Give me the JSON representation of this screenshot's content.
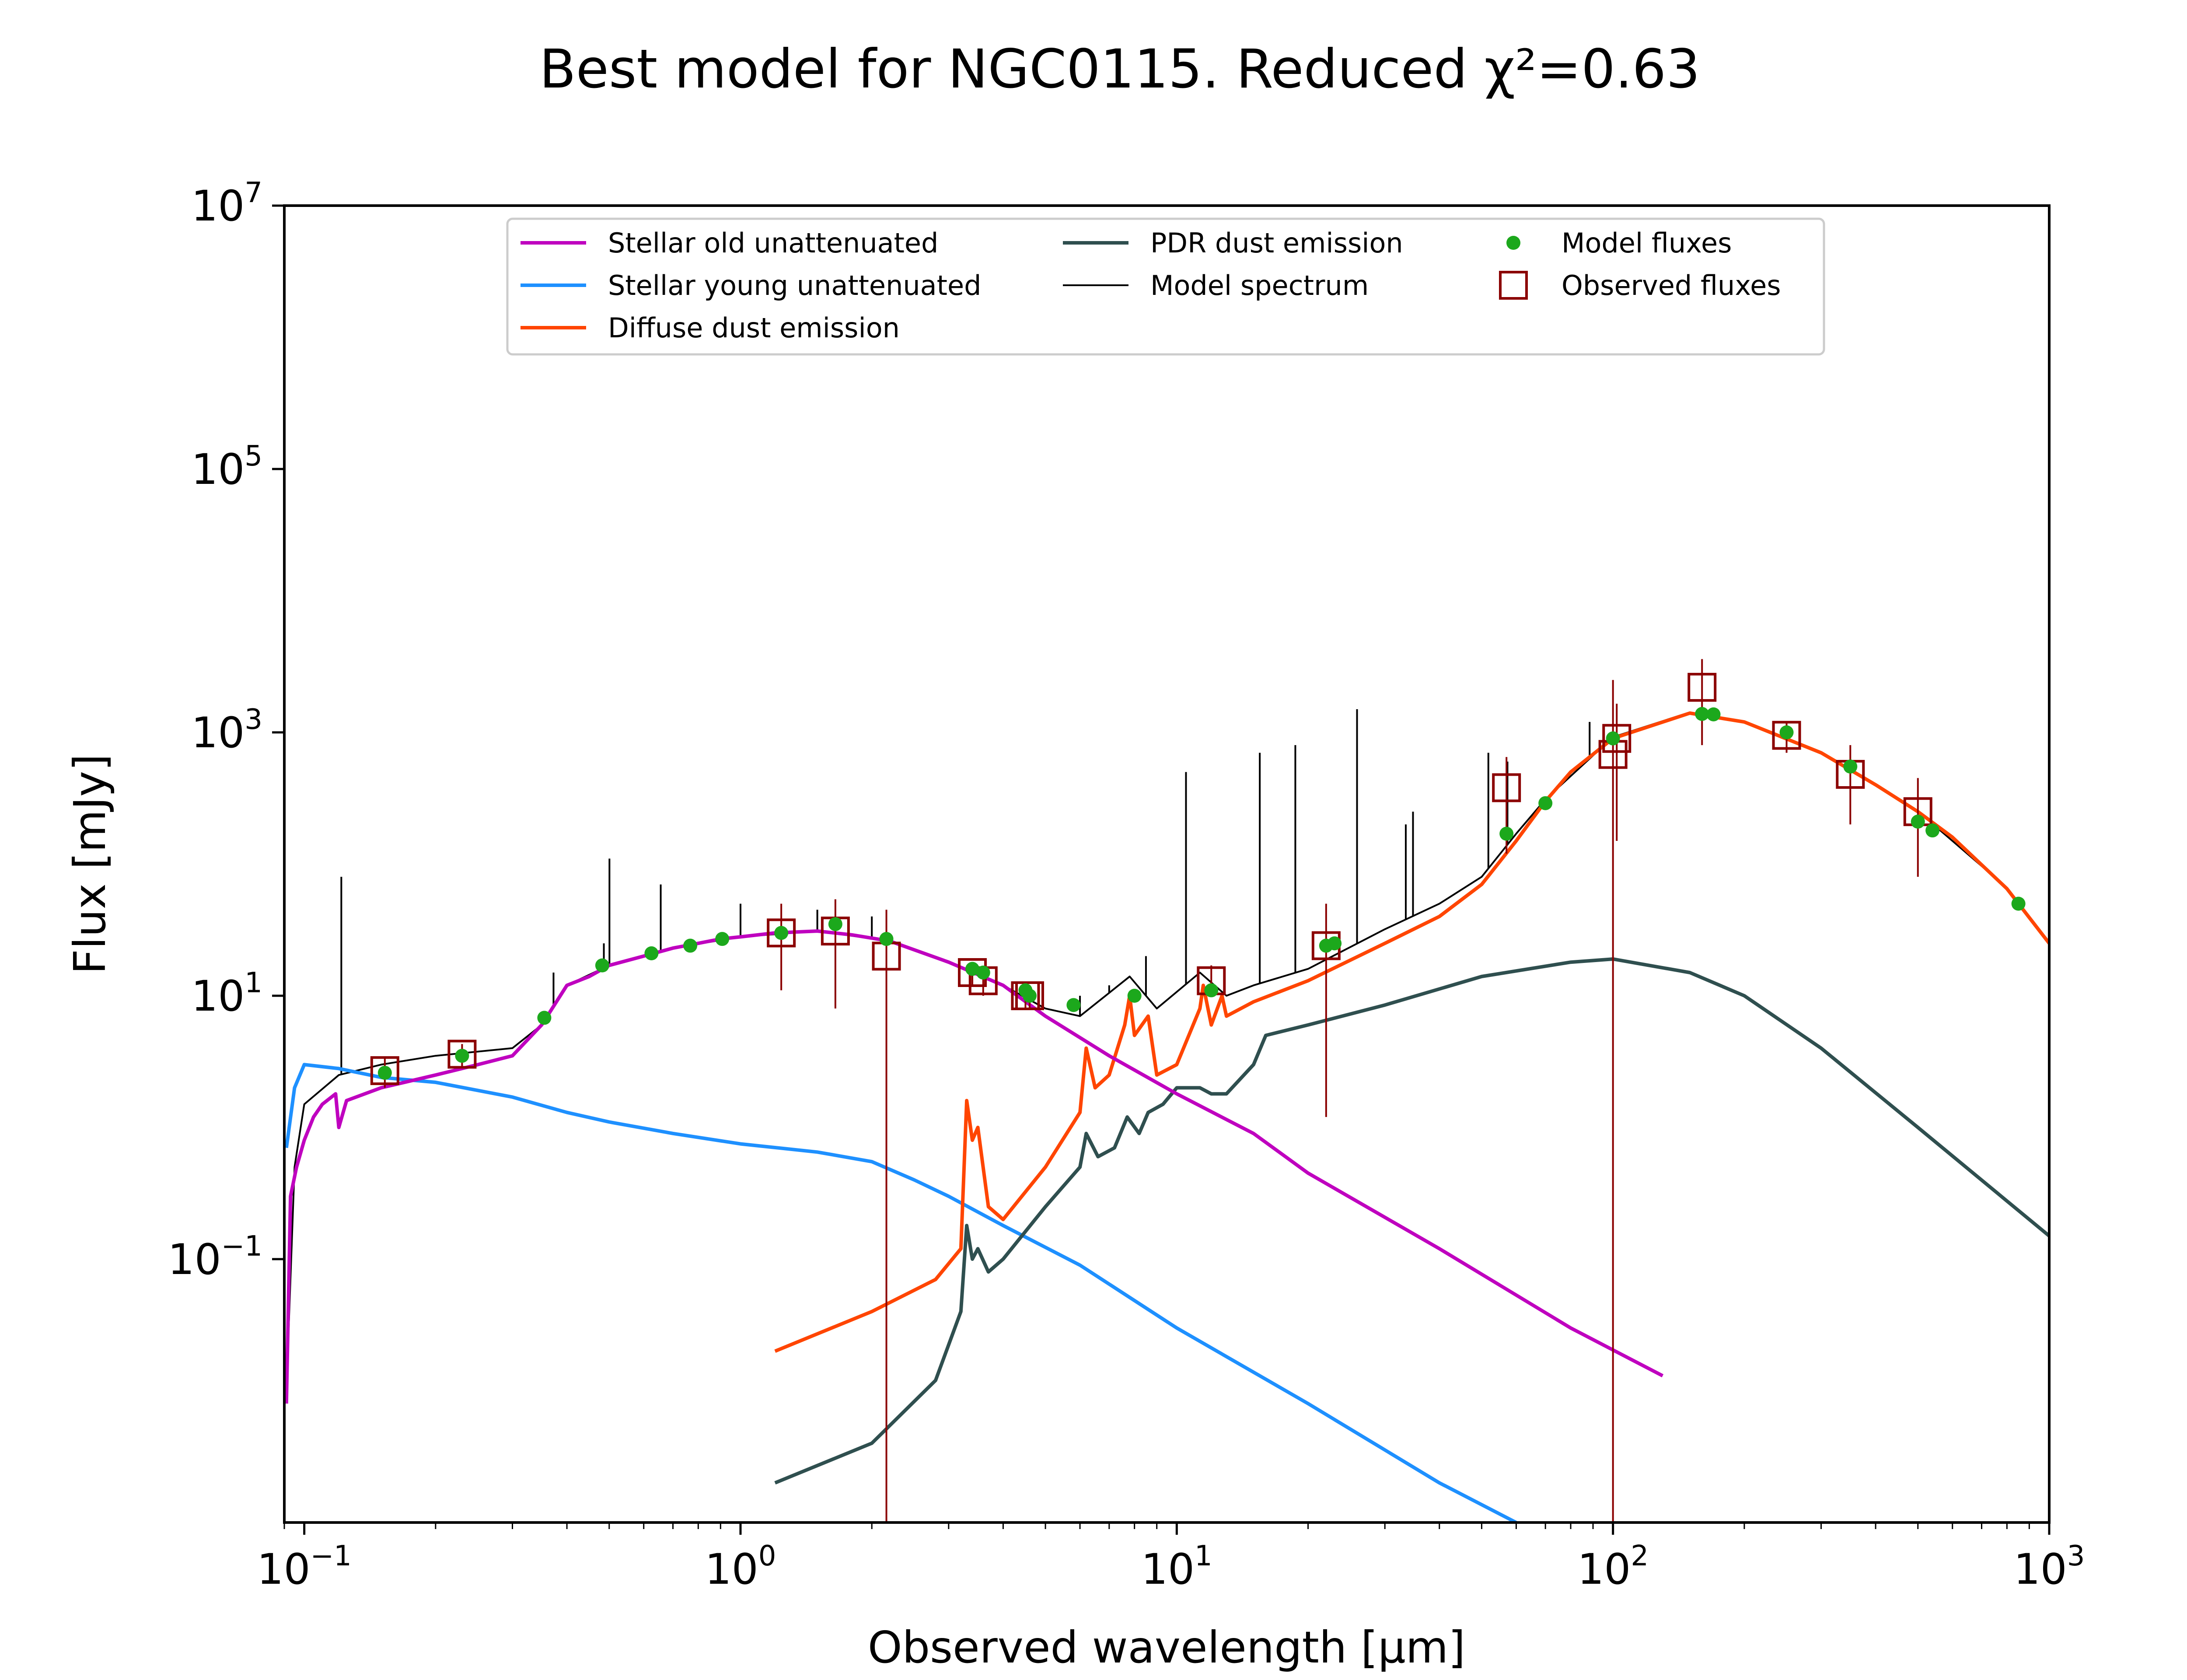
{
  "chart_data": {
    "type": "line",
    "title": "Best model for NGC0115. Reduced χ²=0.63",
    "xlabel": "Observed wavelength [μm]",
    "ylabel": "Flux [mJy]",
    "xscale": "log",
    "yscale": "log",
    "xlim": [
      0.09,
      1000
    ],
    "ylim": [
      0.001,
      10000000
    ],
    "x_ticks": [
      {
        "base": "10",
        "exp": "−1",
        "value": 0.1
      },
      {
        "base": "10",
        "exp": "0",
        "value": 1
      },
      {
        "base": "10",
        "exp": "1",
        "value": 10
      },
      {
        "base": "10",
        "exp": "2",
        "value": 100
      },
      {
        "base": "10",
        "exp": "3",
        "value": 1000
      }
    ],
    "y_ticks": [
      {
        "base": "10",
        "exp": "−1",
        "value": 0.1
      },
      {
        "base": "10",
        "exp": "1",
        "value": 10
      },
      {
        "base": "10",
        "exp": "3",
        "value": 1000
      },
      {
        "base": "10",
        "exp": "5",
        "value": 100000
      },
      {
        "base": "10",
        "exp": "7",
        "value": 10000000
      }
    ],
    "grid": false,
    "legend_position": "top-center",
    "legend": [
      {
        "label": "Stellar old unattenuated",
        "kind": "line",
        "color": "#bf00bf"
      },
      {
        "label": "Stellar young unattenuated",
        "kind": "line",
        "color": "#1e90ff"
      },
      {
        "label": "Diffuse dust emission",
        "kind": "line",
        "color": "#ff4500"
      },
      {
        "label": "PDR dust emission",
        "kind": "line",
        "color": "#2f4f4f"
      },
      {
        "label": "Model spectrum",
        "kind": "thinline",
        "color": "#000000"
      },
      {
        "label": "Model fluxes",
        "kind": "dot",
        "color": "#1ca81c"
      },
      {
        "label": "Observed fluxes",
        "kind": "square",
        "color": "#8b0000"
      }
    ],
    "series": [
      {
        "name": "Stellar old unattenuated",
        "color": "#bf00bf",
        "points": [
          [
            0.091,
            0.008
          ],
          [
            0.093,
            0.3
          ],
          [
            0.096,
            0.5
          ],
          [
            0.1,
            0.8
          ],
          [
            0.105,
            1.2
          ],
          [
            0.11,
            1.5
          ],
          [
            0.118,
            1.8
          ],
          [
            0.12,
            1.0
          ],
          [
            0.125,
            1.6
          ],
          [
            0.15,
            2.0
          ],
          [
            0.2,
            2.5
          ],
          [
            0.25,
            3.0
          ],
          [
            0.3,
            3.5
          ],
          [
            0.35,
            6.0
          ],
          [
            0.37,
            8.0
          ],
          [
            0.4,
            12
          ],
          [
            0.45,
            14
          ],
          [
            0.5,
            17
          ],
          [
            0.6,
            20
          ],
          [
            0.7,
            23
          ],
          [
            0.8,
            25
          ],
          [
            0.9,
            27
          ],
          [
            1.0,
            28
          ],
          [
            1.2,
            30
          ],
          [
            1.5,
            31
          ],
          [
            1.8,
            29
          ],
          [
            2.2,
            26
          ],
          [
            3.0,
            18
          ],
          [
            4.0,
            12
          ],
          [
            5.0,
            7
          ],
          [
            7.0,
            3.5
          ],
          [
            10.0,
            1.8
          ],
          [
            15.0,
            0.9
          ],
          [
            20.0,
            0.45
          ],
          [
            40.0,
            0.12
          ],
          [
            80.0,
            0.03
          ],
          [
            130.0,
            0.013
          ]
        ]
      },
      {
        "name": "Stellar young unattenuated",
        "color": "#1e90ff",
        "points": [
          [
            0.091,
            0.7
          ],
          [
            0.095,
            2.0
          ],
          [
            0.1,
            3.0
          ],
          [
            0.12,
            2.8
          ],
          [
            0.15,
            2.4
          ],
          [
            0.2,
            2.2
          ],
          [
            0.3,
            1.7
          ],
          [
            0.4,
            1.3
          ],
          [
            0.5,
            1.1
          ],
          [
            0.7,
            0.9
          ],
          [
            1.0,
            0.75
          ],
          [
            1.5,
            0.65
          ],
          [
            2.0,
            0.55
          ],
          [
            2.5,
            0.4
          ],
          [
            3.0,
            0.3
          ],
          [
            4.0,
            0.18
          ],
          [
            6.0,
            0.09
          ],
          [
            10.0,
            0.03
          ],
          [
            20.0,
            0.008
          ],
          [
            40.0,
            0.002
          ],
          [
            60.0,
            0.001
          ]
        ]
      },
      {
        "name": "Diffuse dust emission",
        "color": "#ff4500",
        "points": [
          [
            1.2,
            0.02
          ],
          [
            2.0,
            0.04
          ],
          [
            2.8,
            0.07
          ],
          [
            3.2,
            0.12
          ],
          [
            3.3,
            1.6
          ],
          [
            3.4,
            0.8
          ],
          [
            3.5,
            1.0
          ],
          [
            3.7,
            0.25
          ],
          [
            4.0,
            0.2
          ],
          [
            5.0,
            0.5
          ],
          [
            6.0,
            1.3
          ],
          [
            6.2,
            4.0
          ],
          [
            6.5,
            2.0
          ],
          [
            7.0,
            2.5
          ],
          [
            7.6,
            6.0
          ],
          [
            7.8,
            10.0
          ],
          [
            8.0,
            5.0
          ],
          [
            8.6,
            7.0
          ],
          [
            9.0,
            2.5
          ],
          [
            10.0,
            3.0
          ],
          [
            11.3,
            8.0
          ],
          [
            11.5,
            12.0
          ],
          [
            12.0,
            6.0
          ],
          [
            12.7,
            10.0
          ],
          [
            13.0,
            7.0
          ],
          [
            15.0,
            9.0
          ],
          [
            20.0,
            13.0
          ],
          [
            30.0,
            25.0
          ],
          [
            40.0,
            40.0
          ],
          [
            50.0,
            70.0
          ],
          [
            60.0,
            150.0
          ],
          [
            70.0,
            300.0
          ],
          [
            80.0,
            500.0
          ],
          [
            100.0,
            900.0
          ],
          [
            150.0,
            1400.0
          ],
          [
            200.0,
            1200.0
          ],
          [
            300.0,
            700.0
          ],
          [
            400.0,
            400.0
          ],
          [
            500.0,
            250.0
          ],
          [
            600.0,
            160.0
          ],
          [
            800.0,
            65.0
          ],
          [
            1000.0,
            25.0
          ]
        ]
      },
      {
        "name": "PDR dust emission",
        "color": "#2f4f4f",
        "points": [
          [
            1.2,
            0.002
          ],
          [
            2.0,
            0.004
          ],
          [
            2.8,
            0.012
          ],
          [
            3.2,
            0.04
          ],
          [
            3.3,
            0.18
          ],
          [
            3.4,
            0.1
          ],
          [
            3.5,
            0.12
          ],
          [
            3.7,
            0.08
          ],
          [
            4.0,
            0.1
          ],
          [
            5.0,
            0.25
          ],
          [
            6.0,
            0.5
          ],
          [
            6.2,
            0.9
          ],
          [
            6.6,
            0.6
          ],
          [
            7.2,
            0.7
          ],
          [
            7.7,
            1.2
          ],
          [
            8.2,
            0.9
          ],
          [
            8.6,
            1.3
          ],
          [
            9.3,
            1.5
          ],
          [
            10.0,
            2.0
          ],
          [
            11.3,
            2.0
          ],
          [
            12.0,
            1.8
          ],
          [
            13.0,
            1.8
          ],
          [
            15.0,
            3.0
          ],
          [
            16.0,
            5.0
          ],
          [
            20.0,
            6.0
          ],
          [
            30.0,
            8.5
          ],
          [
            50.0,
            14.0
          ],
          [
            80.0,
            18.0
          ],
          [
            100.0,
            19.0
          ],
          [
            150.0,
            15.0
          ],
          [
            200.0,
            10.0
          ],
          [
            300.0,
            4.0
          ],
          [
            500.0,
            1.0
          ],
          [
            1000.0,
            0.15
          ]
        ]
      },
      {
        "name": "Model spectrum",
        "color": "#000000",
        "points": [
          [
            0.091,
            0.01
          ],
          [
            0.095,
            0.5
          ],
          [
            0.1,
            1.5
          ],
          [
            0.12,
            2.5
          ],
          [
            0.15,
            3.0
          ],
          [
            0.2,
            3.5
          ],
          [
            0.3,
            4.0
          ],
          [
            0.35,
            6.0
          ],
          [
            0.4,
            12
          ],
          [
            0.5,
            17
          ],
          [
            0.7,
            23
          ],
          [
            1.0,
            28
          ],
          [
            1.5,
            31
          ],
          [
            2.2,
            26
          ],
          [
            3.0,
            18
          ],
          [
            4.0,
            12
          ],
          [
            5.0,
            8
          ],
          [
            6.0,
            7
          ],
          [
            7.8,
            14
          ],
          [
            9.0,
            8
          ],
          [
            11.3,
            15
          ],
          [
            13.0,
            10
          ],
          [
            15.0,
            12
          ],
          [
            20.0,
            16
          ],
          [
            30.0,
            32
          ],
          [
            40.0,
            50
          ],
          [
            50.0,
            80
          ],
          [
            60.0,
            170
          ],
          [
            70.0,
            310
          ],
          [
            100.0,
            920
          ],
          [
            150.0,
            1420
          ],
          [
            200.0,
            1210
          ],
          [
            300.0,
            705
          ],
          [
            500.0,
            252
          ],
          [
            800.0,
            66
          ],
          [
            1000.0,
            25
          ]
        ]
      }
    ],
    "emission_lines": [
      [
        0.1216,
        80
      ],
      [
        0.3727,
        15
      ],
      [
        0.4861,
        25
      ],
      [
        0.5007,
        110
      ],
      [
        0.6563,
        70
      ],
      [
        1.0,
        50
      ],
      [
        1.5,
        45
      ],
      [
        2.0,
        40
      ],
      [
        6.0,
        10
      ],
      [
        7.0,
        12
      ],
      [
        8.5,
        20
      ],
      [
        10.5,
        500
      ],
      [
        15.5,
        700
      ],
      [
        18.7,
        800
      ],
      [
        25.9,
        1500
      ],
      [
        33.5,
        200
      ],
      [
        34.8,
        250
      ],
      [
        51.8,
        700
      ],
      [
        57.3,
        600
      ],
      [
        88.4,
        1200
      ]
    ],
    "model_fluxes": {
      "name": "Model fluxes",
      "color": "#1ca81c",
      "points": [
        [
          0.153,
          2.6
        ],
        [
          0.23,
          3.5
        ],
        [
          0.355,
          6.8
        ],
        [
          0.482,
          17
        ],
        [
          0.625,
          21
        ],
        [
          0.767,
          24
        ],
        [
          0.908,
          27
        ],
        [
          1.24,
          30
        ],
        [
          1.65,
          35
        ],
        [
          2.16,
          27
        ],
        [
          3.4,
          16
        ],
        [
          3.6,
          15
        ],
        [
          4.5,
          11
        ],
        [
          4.6,
          10
        ],
        [
          5.8,
          8.5
        ],
        [
          8.0,
          10
        ],
        [
          12.0,
          11
        ],
        [
          22.0,
          24
        ],
        [
          23.0,
          25
        ],
        [
          57.0,
          170
        ],
        [
          70.0,
          290
        ],
        [
          100.0,
          900
        ],
        [
          160.0,
          1380
        ],
        [
          170.0,
          1370
        ],
        [
          250.0,
          1000
        ],
        [
          350.0,
          550
        ],
        [
          500.0,
          210
        ],
        [
          540.0,
          180
        ],
        [
          850.0,
          50
        ]
      ]
    },
    "observed_fluxes": {
      "name": "Observed fluxes",
      "color": "#8b0000",
      "points": [
        {
          "x": 0.153,
          "y": 2.7,
          "ylo": 2.0,
          "yhi": 3.4
        },
        {
          "x": 0.23,
          "y": 3.6,
          "ylo": 2.9,
          "yhi": 4.3
        },
        {
          "x": 1.24,
          "y": 30,
          "ylo": 11,
          "yhi": 50
        },
        {
          "x": 1.65,
          "y": 31,
          "ylo": 8,
          "yhi": 54
        },
        {
          "x": 2.16,
          "y": 20,
          "ylo": 0.001,
          "yhi": 45
        },
        {
          "x": 3.4,
          "y": 15,
          "ylo": 12,
          "yhi": 18
        },
        {
          "x": 3.6,
          "y": 13,
          "ylo": 10,
          "yhi": 16
        },
        {
          "x": 4.5,
          "y": 10,
          "ylo": 8,
          "yhi": 12
        },
        {
          "x": 4.6,
          "y": 10,
          "ylo": 8,
          "yhi": 12
        },
        {
          "x": 12.0,
          "y": 13,
          "ylo": 10,
          "yhi": 17
        },
        {
          "x": 22.0,
          "y": 24,
          "ylo": 1.2,
          "yhi": 50
        },
        {
          "x": 57.0,
          "y": 380,
          "ylo": 120,
          "yhi": 650
        },
        {
          "x": 100.0,
          "y": 680,
          "ylo": 0.001,
          "yhi": 2500
        },
        {
          "x": 102.0,
          "y": 900,
          "ylo": 150,
          "yhi": 1650
        },
        {
          "x": 160.0,
          "y": 2200,
          "ylo": 800,
          "yhi": 3600
        },
        {
          "x": 250.0,
          "y": 950,
          "ylo": 700,
          "yhi": 1200
        },
        {
          "x": 350.0,
          "y": 480,
          "ylo": 200,
          "yhi": 800
        },
        {
          "x": 500.0,
          "y": 250,
          "ylo": 80,
          "yhi": 450
        }
      ]
    }
  }
}
